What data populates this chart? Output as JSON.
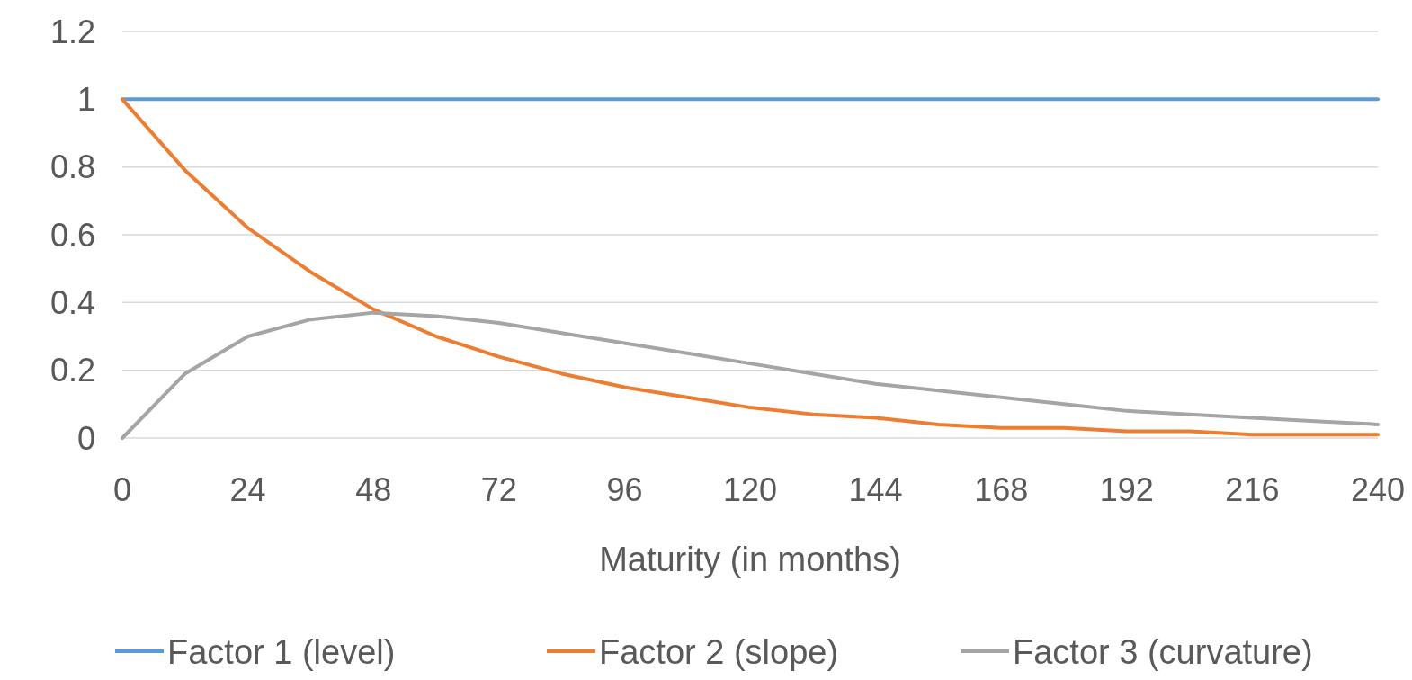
{
  "chart_data": {
    "type": "line",
    "xlabel": "Maturity (in months)",
    "x": [
      0,
      12,
      24,
      36,
      48,
      60,
      72,
      84,
      96,
      108,
      120,
      132,
      144,
      156,
      168,
      180,
      192,
      204,
      216,
      228,
      240
    ],
    "xlim": [
      0,
      240
    ],
    "xticks": [
      0,
      24,
      48,
      72,
      96,
      120,
      144,
      168,
      192,
      216,
      240
    ],
    "ylim": [
      0,
      1.2
    ],
    "yticks": [
      0,
      0.2,
      0.4,
      0.6,
      0.8,
      1,
      1.2
    ],
    "grid": "y",
    "legend": "bottom",
    "marker": "none",
    "line_style": "solid",
    "series": [
      {
        "name": "Factor 1 (level)",
        "color": "#5b9bd5",
        "values": [
          1,
          1,
          1,
          1,
          1,
          1,
          1,
          1,
          1,
          1,
          1,
          1,
          1,
          1,
          1,
          1,
          1,
          1,
          1,
          1,
          1
        ]
      },
      {
        "name": "Factor 2 (slope)",
        "color": "#ed7d31",
        "values": [
          1,
          0.79,
          0.62,
          0.49,
          0.38,
          0.3,
          0.24,
          0.19,
          0.15,
          0.12,
          0.09,
          0.07,
          0.06,
          0.04,
          0.03,
          0.03,
          0.02,
          0.02,
          0.01,
          0.01,
          0.01
        ]
      },
      {
        "name": "Factor 3 (curvature)",
        "color": "#a5a5a5",
        "values": [
          0,
          0.19,
          0.3,
          0.35,
          0.37,
          0.36,
          0.34,
          0.31,
          0.28,
          0.25,
          0.22,
          0.19,
          0.16,
          0.14,
          0.12,
          0.1,
          0.08,
          0.07,
          0.06,
          0.05,
          0.04
        ]
      }
    ]
  }
}
